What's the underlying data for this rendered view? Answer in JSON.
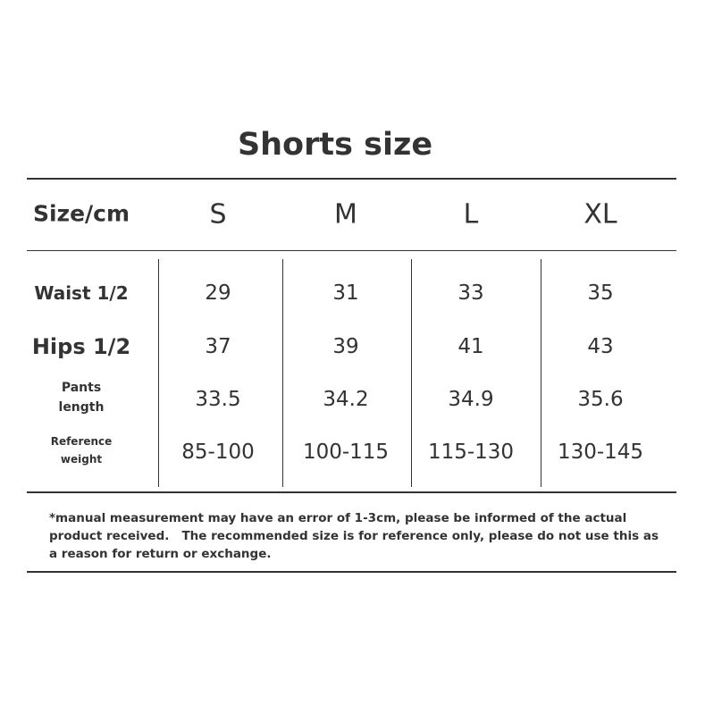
{
  "title": "Shorts size",
  "table": {
    "header": [
      "Size/cm",
      "S",
      "M",
      "L",
      "XL"
    ],
    "rows": [
      [
        "Waist 1/2",
        "29",
        "31",
        "33",
        "35"
      ],
      [
        "Hips 1/2",
        "37",
        "39",
        "41",
        "43"
      ],
      [
        "Pants length",
        "33.5",
        "34.2",
        "34.9",
        "35.6"
      ],
      [
        "Reference weight",
        "85-100",
        "100-115",
        "115-130",
        "130-145"
      ]
    ]
  },
  "note": "*manual measurement may have an error of 1-3cm, please be informed of the actual product received.   The recommended size is for reference only, please do not use this as a reason for return or exchange."
}
